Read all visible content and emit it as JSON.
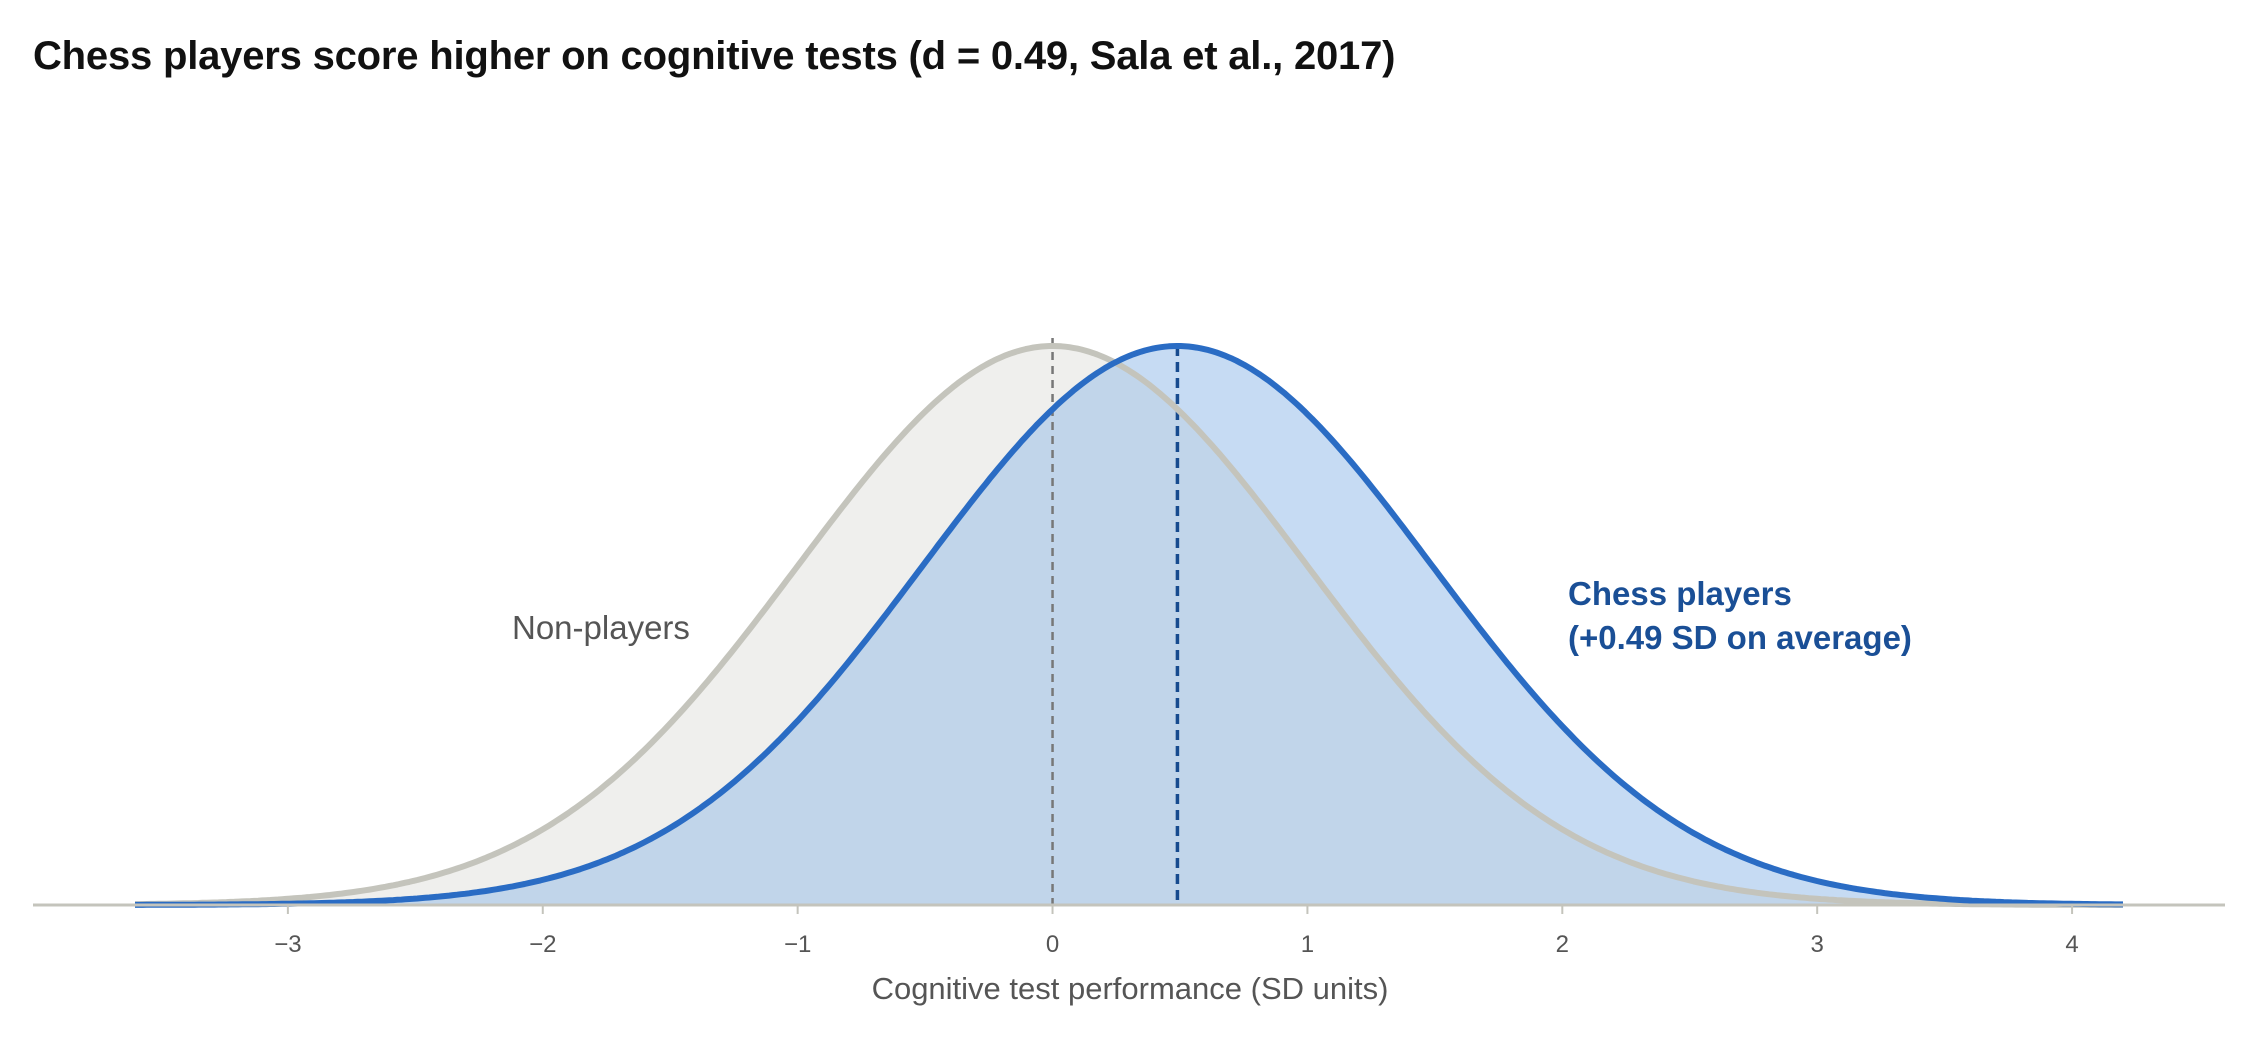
{
  "chart_data": {
    "type": "area",
    "title": "Chess players score higher on cognitive tests (d = 0.49, Sala et al., 2017)",
    "xlabel": "Cognitive test performance (SD units)",
    "ylabel": "",
    "xlim": [
      -4.0,
      4.6
    ],
    "x_ticks": [
      -3,
      -2,
      -1,
      0,
      1,
      2,
      3,
      4
    ],
    "x_tick_labels": [
      "−3",
      "−2",
      "−1",
      "0",
      "1",
      "2",
      "3",
      "4"
    ],
    "y_axis_visible": false,
    "grid": false,
    "x_domain": [
      -3.6,
      4.2
    ],
    "series": [
      {
        "name": "Non-players",
        "distribution": "normal",
        "mean": 0,
        "sd": 1,
        "fill_color": "#efefed",
        "line_color": "#c4c4bc",
        "mean_line_color": "#777777"
      },
      {
        "name": "Chess players",
        "distribution": "normal",
        "mean": 0.49,
        "sd": 1,
        "fill_color": "#c6dbf3",
        "overlap_fill_color": "#c1d5ea",
        "line_color": "#2a6cc4",
        "mean_line_color": "#174b8f"
      }
    ],
    "annotations": {
      "non_players": "Non-players",
      "chess_line1": "Chess players",
      "chess_line2": "(+0.49 SD on average)"
    },
    "colors": {
      "baseline": "#c4c4bc",
      "title": "#111111",
      "axis_text": "#555555",
      "annotation_blue": "#1a4f96"
    }
  }
}
